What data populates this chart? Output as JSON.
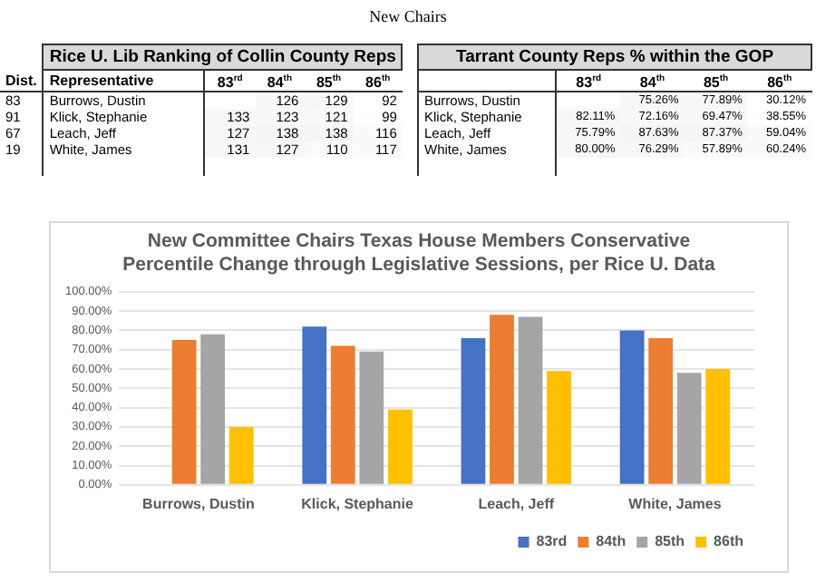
{
  "chart_data": [
    {
      "type": "other",
      "title": "New Chairs"
    },
    {
      "type": "heatmap",
      "title": "Rice U. Lib Ranking of Collin County Reps",
      "ylabel": "Representative",
      "y2label": "Dist.",
      "categories": [
        "83$^{rd}$",
        "84$^{th}$",
        "85$^{th}$",
        "86$^{th}$"
      ],
      "y_categories": [
        "Burrows, Dustin",
        "Klick, Stephanie",
        "Leach, Jeff",
        "White, James"
      ],
      "y2_categories": [
        "83",
        "91",
        "67",
        "19"
      ],
      "cells": [
        [
          null,
          126,
          129,
          92
        ],
        [
          133,
          123,
          121,
          99
        ],
        [
          127,
          138,
          138,
          116
        ],
        [
          131,
          127,
          110,
          117
        ]
      ],
      "cell_labels": [
        [
          null,
          "126",
          "129",
          "92"
        ],
        [
          "133",
          "123",
          "121",
          "99"
        ],
        [
          "127",
          "138",
          "138",
          "116"
        ],
        [
          "131",
          "127",
          "110",
          "117"
        ]
      ]
    },
    {
      "type": "heatmap",
      "title": "Tarrant County Reps % within the GOP",
      "categories": [
        "83$^{rd}$",
        "84$^{th}$",
        "85$^{th}$",
        "86$^{th}$"
      ],
      "y_categories": [
        "Burrows, Dustin",
        "Klick, Stephanie",
        "Leach, Jeff",
        "White, James"
      ],
      "cells": [
        [
          null,
          75.26,
          77.89,
          30.12
        ],
        [
          82.11,
          72.16,
          69.47,
          38.55
        ],
        [
          75.79,
          87.63,
          87.37,
          59.04
        ],
        [
          80.0,
          76.29,
          57.89,
          60.24
        ]
      ],
      "cell_labels": [
        [
          null,
          "75.26%",
          "77.89%",
          "30.12%"
        ],
        [
          "82.11%",
          "72.16%",
          "69.47%",
          "38.55%"
        ],
        [
          "75.79%",
          "87.63%",
          "87.37%",
          "59.04%"
        ],
        [
          "80.00%",
          "76.29%",
          "57.89%",
          "60.24%"
        ]
      ]
    },
    {
      "type": "bar",
      "title": "New Committee Chairs Texas House Members Conservative Percentile Change through Legislative Sessions, per Rice U. Data",
      "categories": [
        "Burrows, Dustin",
        "Klick, Stephanie",
        "Leach, Jeff",
        "White, James"
      ],
      "series": [
        {
          "name": "83rd",
          "color": "#4472c4",
          "values": [
            null,
            82,
            76,
            80
          ]
        },
        {
          "name": "84th",
          "color": "#ed7d31",
          "values": [
            75,
            72,
            88,
            76
          ]
        },
        {
          "name": "85th",
          "color": "#a5a5a5",
          "values": [
            78,
            69,
            87,
            58
          ]
        },
        {
          "name": "86th",
          "color": "#ffc000",
          "values": [
            30,
            39,
            59,
            60
          ]
        }
      ],
      "ylim": [
        0,
        100
      ],
      "yticks": [
        {
          "value": 0,
          "label": "0.00%"
        },
        {
          "value": 10,
          "label": "10.00%"
        },
        {
          "value": 20,
          "label": "20.00%"
        },
        {
          "value": 30,
          "label": "30.00%"
        },
        {
          "value": 40,
          "label": "40.00%"
        },
        {
          "value": 50,
          "label": "50.00%"
        },
        {
          "value": 60,
          "label": "60.00%"
        },
        {
          "value": 70,
          "label": "70.00%"
        },
        {
          "value": 80,
          "label": "80.00%"
        },
        {
          "value": 90,
          "label": "90.00%"
        },
        {
          "value": 100,
          "label": "100.00%"
        }
      ],
      "grid": "y",
      "legend": "bottom"
    }
  ]
}
